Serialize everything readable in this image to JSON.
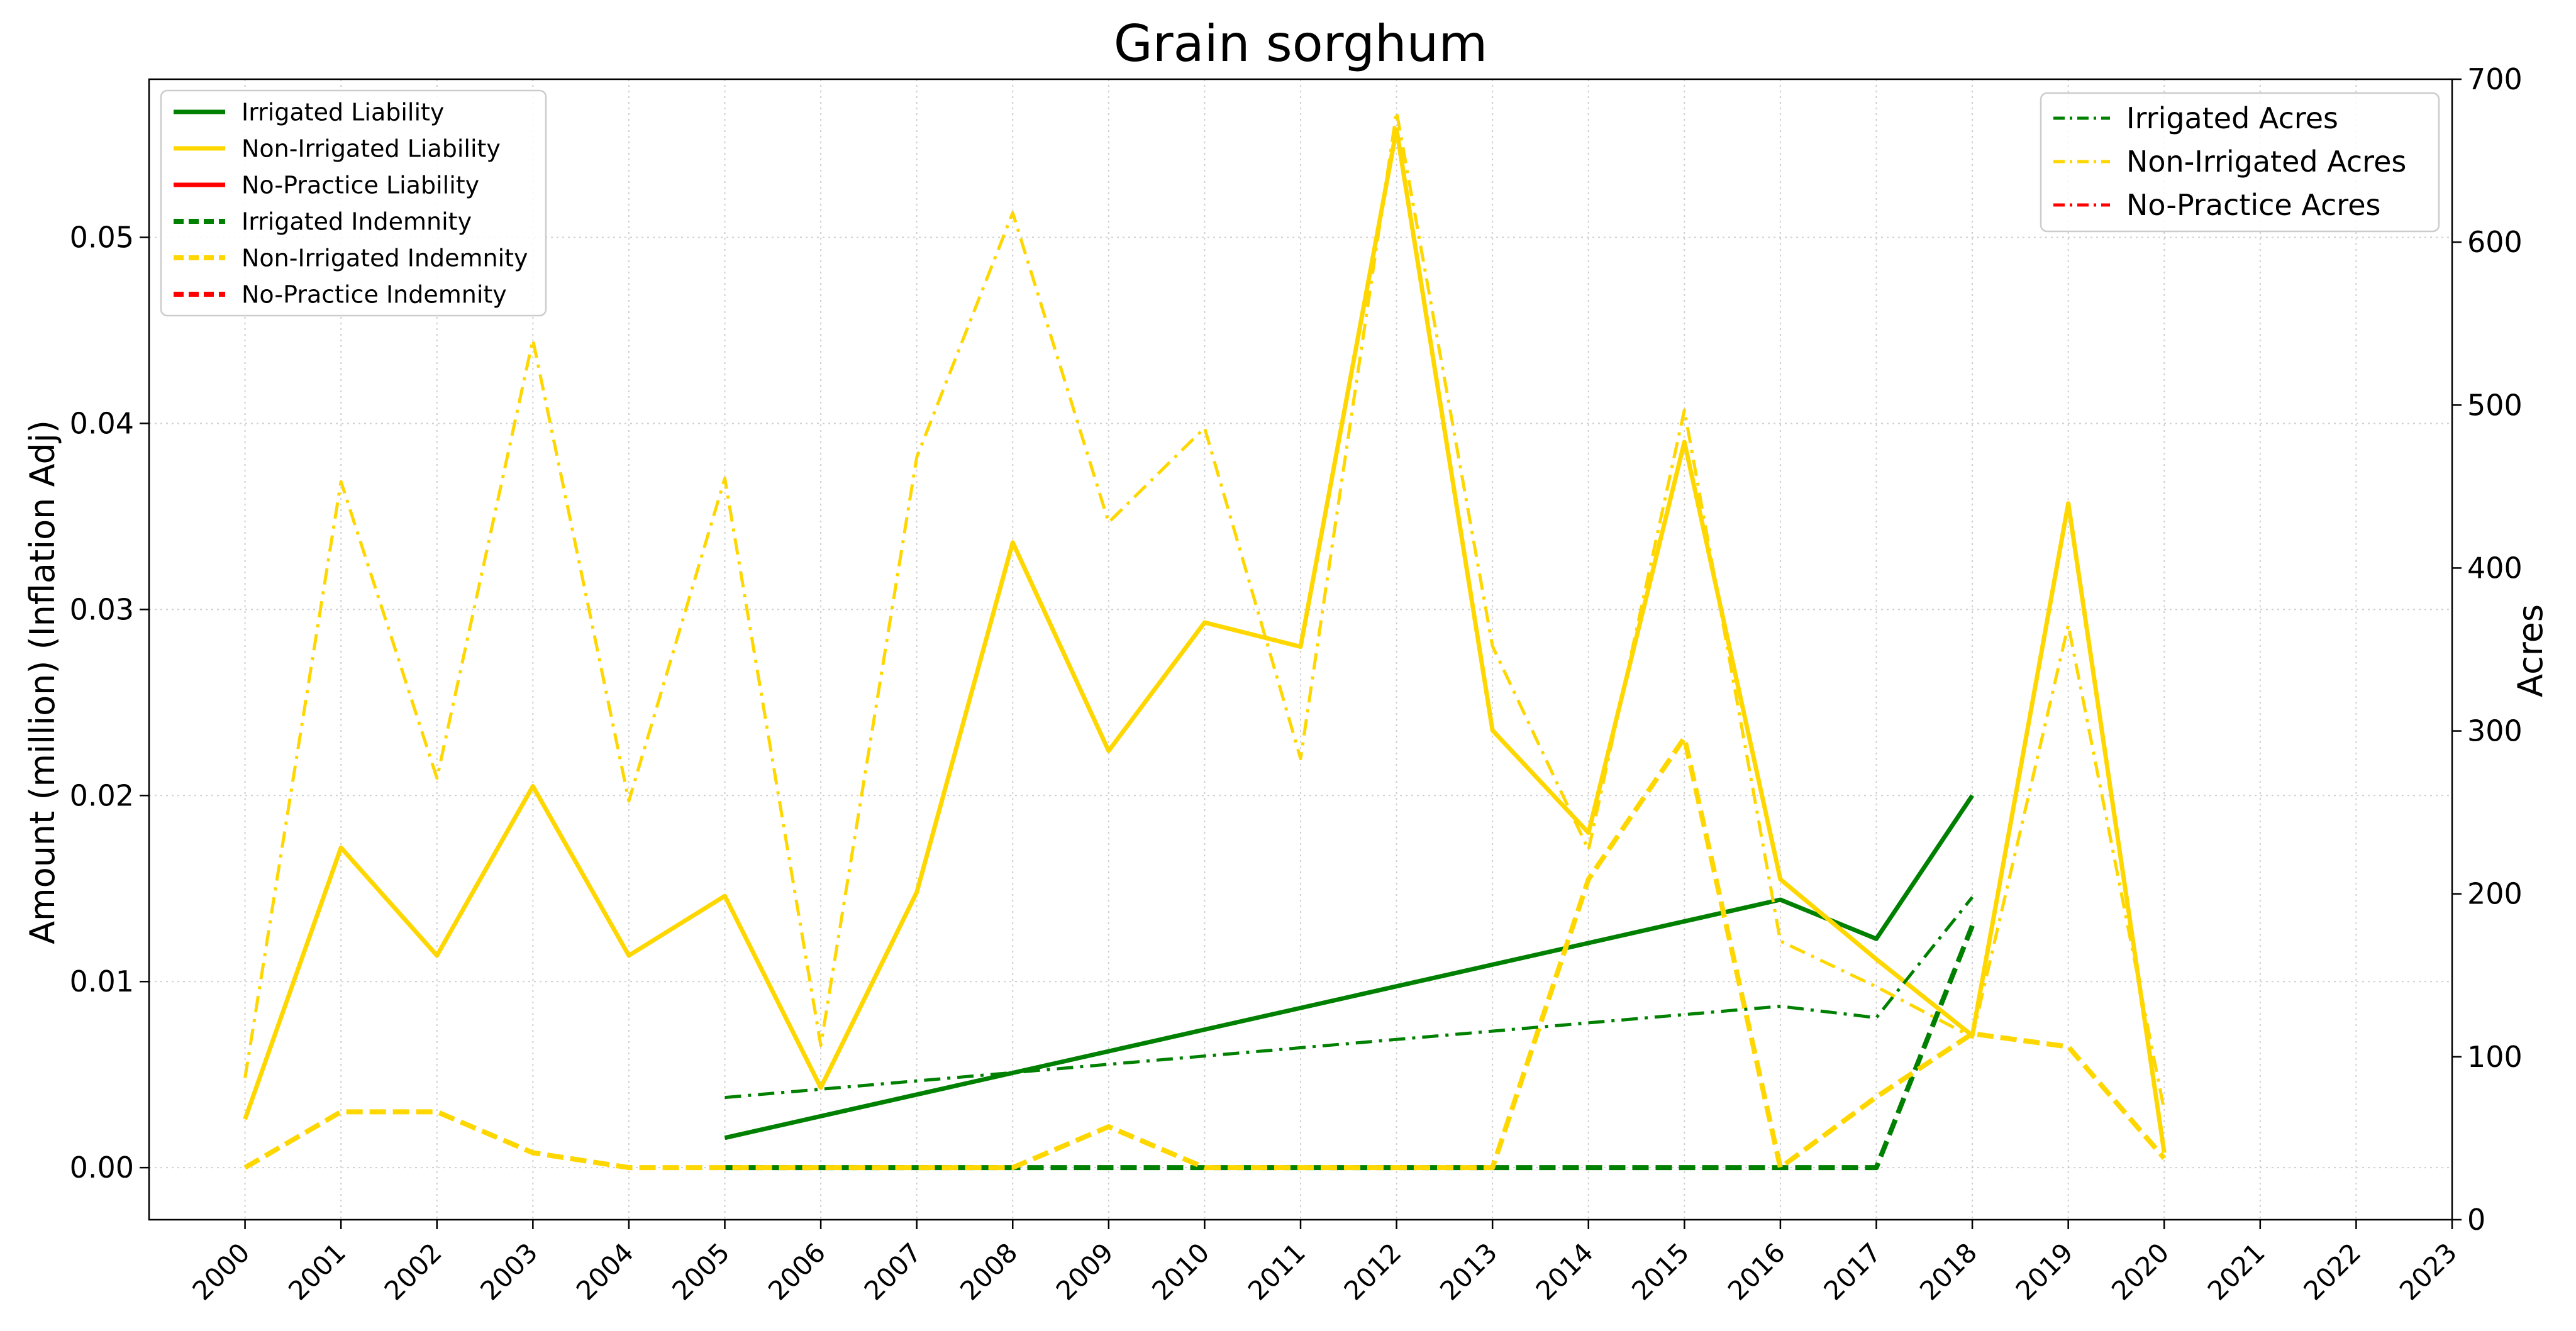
{
  "chart_data": {
    "type": "line",
    "title": "Grain sorghum",
    "ylabel": "Amount (million) (Inflation Adj)",
    "y2label": "Acres",
    "x_ticks": [
      "2000",
      "2001",
      "2002",
      "2003",
      "2004",
      "2005",
      "2006",
      "2007",
      "2008",
      "2009",
      "2010",
      "2011",
      "2012",
      "2013",
      "2014",
      "2015",
      "2016",
      "2017",
      "2018",
      "2019",
      "2020",
      "2021",
      "2022",
      "2023"
    ],
    "y_ticks": [
      "0.00",
      "0.01",
      "0.02",
      "0.03",
      "0.04",
      "0.05"
    ],
    "y2_ticks": [
      "0",
      "100",
      "200",
      "300",
      "400",
      "500",
      "600",
      "700"
    ],
    "xlim": [
      1999,
      2023
    ],
    "ylim": [
      -0.0028,
      0.0585
    ],
    "y2lim": [
      0,
      700
    ],
    "grid": true,
    "legend_left_placement": "upper-left",
    "legend_right_placement": "upper-right",
    "series": [
      {
        "name": "Irrigated Liability",
        "axis": "left",
        "color": "#008000",
        "style": "solid",
        "x": [
          2005,
          2016,
          2017,
          2018
        ],
        "y": [
          0.0016,
          0.0144,
          0.0123,
          0.02
        ]
      },
      {
        "name": "Non-Irrigated Liability",
        "axis": "left",
        "color": "#FFD700",
        "style": "solid",
        "x": [
          2000,
          2001,
          2002,
          2003,
          2004,
          2005,
          2006,
          2007,
          2008,
          2009,
          2010,
          2011,
          2012,
          2013,
          2014,
          2015,
          2016,
          2017,
          2018,
          2019,
          2020
        ],
        "y": [
          0.0026,
          0.0172,
          0.0114,
          0.0205,
          0.0114,
          0.0146,
          0.0043,
          0.0148,
          0.0336,
          0.0224,
          0.0293,
          0.028,
          0.0558,
          0.0235,
          0.018,
          0.039,
          0.0155,
          0.0112,
          0.0071,
          0.0357,
          0.0008
        ]
      },
      {
        "name": "No-Practice Liability",
        "axis": "left",
        "color": "#FF0000",
        "style": "solid",
        "x": [],
        "y": []
      },
      {
        "name": "Irrigated Indemnity",
        "axis": "left",
        "color": "#008000",
        "style": "dashed",
        "x": [
          2005,
          2006,
          2007,
          2008,
          2009,
          2010,
          2011,
          2012,
          2013,
          2014,
          2015,
          2016,
          2017,
          2018
        ],
        "y": [
          0,
          0,
          0,
          0,
          0,
          0,
          0,
          0,
          0,
          0,
          0,
          0,
          0,
          0.013
        ]
      },
      {
        "name": "Non-Irrigated Indemnity",
        "axis": "left",
        "color": "#FFD700",
        "style": "dashed",
        "x": [
          2000,
          2001,
          2002,
          2003,
          2004,
          2005,
          2006,
          2007,
          2008,
          2009,
          2010,
          2011,
          2012,
          2013,
          2014,
          2015,
          2016,
          2017,
          2018,
          2019,
          2020
        ],
        "y": [
          0,
          0.003,
          0.003,
          0.0008,
          0,
          0,
          0,
          0,
          0,
          0.0022,
          0,
          0,
          0,
          0,
          0.0155,
          0.0231,
          0,
          0.0038,
          0.0072,
          0.0065,
          0.0005
        ]
      },
      {
        "name": "No-Practice Indemnity",
        "axis": "left",
        "color": "#FF0000",
        "style": "dashed",
        "x": [],
        "y": []
      },
      {
        "name": "Irrigated Acres",
        "axis": "right",
        "color": "#008000",
        "style": "dashdot",
        "x": [
          2005,
          2016,
          2017,
          2018
        ],
        "y": [
          75,
          131,
          124,
          198
        ]
      },
      {
        "name": "Non-Irrigated Acres",
        "axis": "right",
        "color": "#FFD700",
        "style": "dashdot",
        "x": [
          2000,
          2001,
          2002,
          2003,
          2004,
          2005,
          2006,
          2007,
          2008,
          2009,
          2010,
          2011,
          2012,
          2013,
          2014,
          2015,
          2016,
          2017,
          2018,
          2019,
          2020
        ],
        "y": [
          87,
          453,
          271,
          540,
          257,
          455,
          107,
          468,
          618,
          428,
          486,
          283,
          680,
          352,
          227,
          497,
          171,
          143,
          112,
          365,
          67
        ]
      },
      {
        "name": "No-Practice Acres",
        "axis": "right",
        "color": "#FF0000",
        "style": "dashdot",
        "x": [],
        "y": []
      }
    ]
  }
}
